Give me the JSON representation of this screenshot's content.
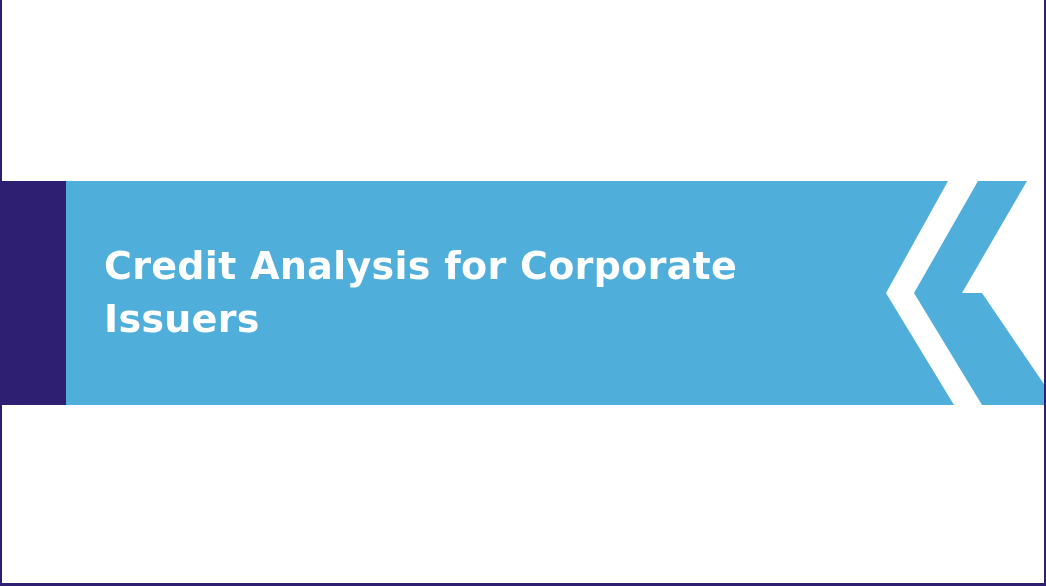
{
  "slide": {
    "title_line_1": "Credit Analysis for Corporate",
    "title_line_2": "Issuers"
  },
  "colors": {
    "banner": "#4fafda",
    "accent_bar": "#2e1f73",
    "frame": "#2e1f73",
    "background": "#ffffff",
    "title_text": "#ffffff"
  }
}
